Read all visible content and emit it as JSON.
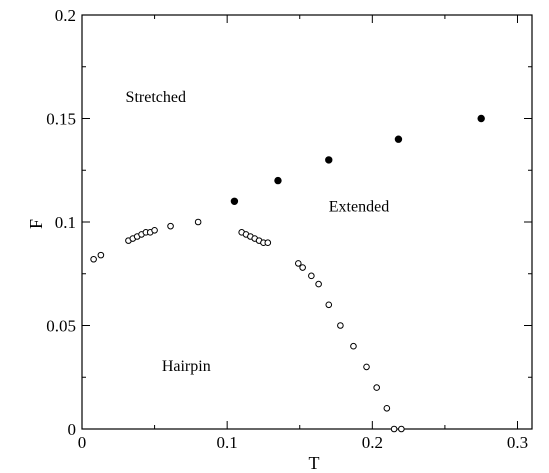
{
  "chart_data": {
    "type": "scatter",
    "title": "",
    "xlabel": "T",
    "ylabel": "F",
    "xlim": [
      0,
      0.31
    ],
    "ylim": [
      0,
      0.2
    ],
    "xticks": [
      0,
      0.1,
      0.2,
      0.3
    ],
    "xtick_labels": [
      "0",
      "0.1",
      "0.2",
      "0.3"
    ],
    "yticks": [
      0,
      0.05,
      0.1,
      0.15,
      0.2
    ],
    "ytick_labels": [
      "0",
      "0.05",
      "0.1",
      "0.15",
      "0.2"
    ],
    "grid": false,
    "legend": "none",
    "series": [
      {
        "marker": "open-circle",
        "x": [
          0.008,
          0.013,
          0.032,
          0.035,
          0.038,
          0.041,
          0.044,
          0.047,
          0.05,
          0.061,
          0.08,
          0.11,
          0.113,
          0.116,
          0.119,
          0.122,
          0.125,
          0.128,
          0.149,
          0.152,
          0.158,
          0.163,
          0.17,
          0.178,
          0.187,
          0.196,
          0.203,
          0.21,
          0.215,
          0.22
        ],
        "y": [
          0.082,
          0.084,
          0.091,
          0.092,
          0.093,
          0.094,
          0.095,
          0.095,
          0.096,
          0.098,
          0.1,
          0.095,
          0.094,
          0.093,
          0.092,
          0.091,
          0.09,
          0.09,
          0.08,
          0.078,
          0.074,
          0.07,
          0.06,
          0.05,
          0.04,
          0.03,
          0.02,
          0.01,
          0.0,
          0.0
        ]
      },
      {
        "marker": "filled-circle",
        "x": [
          0.105,
          0.135,
          0.17,
          0.218,
          0.275
        ],
        "y": [
          0.11,
          0.12,
          0.13,
          0.14,
          0.15
        ]
      }
    ],
    "annotations": [
      {
        "text": "Stretched",
        "x": 0.03,
        "y": 0.158
      },
      {
        "text": "Extended",
        "x": 0.17,
        "y": 0.105
      },
      {
        "text": "Hairpin",
        "x": 0.055,
        "y": 0.028
      }
    ]
  }
}
